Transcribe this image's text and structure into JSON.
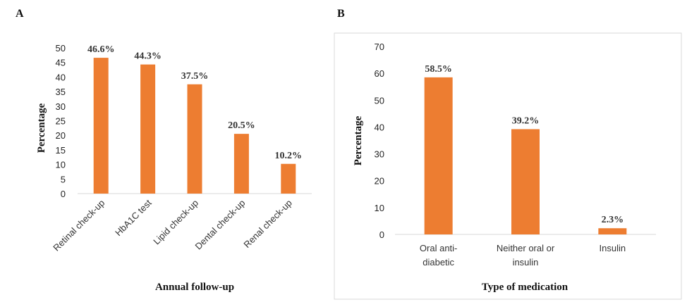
{
  "panels": {
    "a": "A",
    "b": "B"
  },
  "bar_color": "#ED7D31",
  "chart_data": [
    {
      "type": "bar",
      "categories": [
        "Retinal check-up",
        "HbA1C test",
        "Lipid check-up",
        "Dental check-up",
        "Renal check-up"
      ],
      "values": [
        46.6,
        44.3,
        37.5,
        20.5,
        10.2
      ],
      "data_labels": [
        "46.6%",
        "44.3%",
        "37.5%",
        "20.5%",
        "10.2%"
      ],
      "xlabel": "Annual follow-up",
      "ylabel": "Percentage",
      "ylim": [
        0,
        50
      ],
      "yticks": [
        0,
        5,
        10,
        15,
        20,
        25,
        30,
        35,
        40,
        45,
        50
      ],
      "grid": false,
      "category_label_rotation": "rotated"
    },
    {
      "type": "bar",
      "categories": [
        [
          "Oral anti-",
          "diabetic"
        ],
        [
          "Neither oral or",
          "insulin"
        ],
        [
          "Insulin"
        ]
      ],
      "values": [
        58.5,
        39.2,
        2.3
      ],
      "data_labels": [
        "58.5%",
        "39.2%",
        "2.3%"
      ],
      "xlabel": "Type of medication",
      "ylabel": "Percentage",
      "ylim": [
        0,
        70
      ],
      "yticks": [
        0,
        10,
        20,
        30,
        40,
        50,
        60,
        70
      ],
      "grid": false
    }
  ]
}
